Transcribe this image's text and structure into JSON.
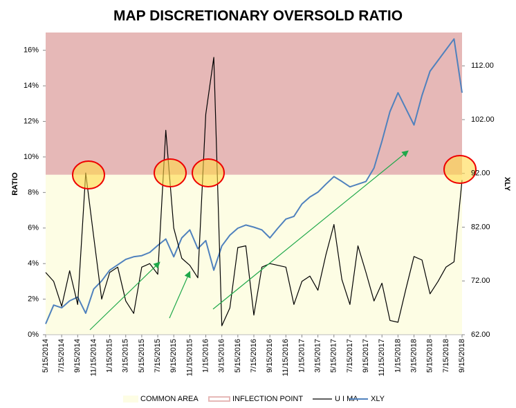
{
  "chart_data": {
    "type": "line",
    "title": "MAP DISCRETIONARY OVERSOLD RATIO",
    "y_label": "RATIO",
    "y2_label": "XLY",
    "categories": [
      "5/15/2014",
      null,
      "7/15/2014",
      null,
      "9/15/2014",
      null,
      "11/15/2014",
      null,
      "1/15/2015",
      null,
      "3/15/2015",
      null,
      "5/15/2015",
      null,
      "7/15/2015",
      null,
      "9/15/2015",
      null,
      "11/15/2015",
      null,
      "1/15/2016",
      null,
      "3/15/2016",
      null,
      "5/15/2016",
      null,
      "7/15/2016",
      null,
      "9/15/2016",
      null,
      "11/15/2016",
      null,
      "1/15/2017",
      null,
      "3/15/2017",
      null,
      "5/15/2017",
      null,
      "7/15/2017",
      null,
      "9/15/2017",
      null,
      "11/15/2017",
      null,
      "1/15/2018",
      null,
      "3/15/2018",
      null,
      "5/15/2018",
      null,
      "7/15/2018",
      null,
      "9/15/2018"
    ],
    "threshold": 9,
    "bands": [
      {
        "name": "COMMON AREA",
        "color": "#fdfde4"
      },
      {
        "name": "INFLECTION POINT",
        "color": "#e6b8b7"
      }
    ],
    "series": [
      {
        "name": "U I MA",
        "color": "#000000",
        "axis": "y",
        "values": [
          3.5,
          3.0,
          1.6,
          3.6,
          1.7,
          9.1,
          5.5,
          2.0,
          3.5,
          3.8,
          1.9,
          1.2,
          3.8,
          4.0,
          3.4,
          11.5,
          6.0,
          4.3,
          3.9,
          3.2,
          12.4,
          15.6,
          0.5,
          1.5,
          4.9,
          5.0,
          1.1,
          3.8,
          4.0,
          3.9,
          3.8,
          1.7,
          3.0,
          3.3,
          2.5,
          4.5,
          6.2,
          3.1,
          1.7,
          5.0,
          3.5,
          1.9,
          2.9,
          0.8,
          0.7,
          2.6,
          4.4,
          4.2,
          2.3,
          3.0,
          3.8,
          4.1,
          8.7
        ]
      },
      {
        "name": "XLY",
        "color": "#4f81bd",
        "axis": "y2",
        "values": [
          64,
          67.5,
          67,
          68.3,
          69,
          66,
          70.5,
          72,
          74,
          75,
          76,
          76.5,
          76.7,
          77.3,
          78.6,
          79.8,
          76.5,
          80,
          81.5,
          78,
          79.5,
          74,
          78.5,
          80.5,
          81.8,
          82.4,
          82,
          81.5,
          80,
          81.8,
          83.5,
          84,
          86.3,
          87.6,
          88.5,
          90,
          91.4,
          90.5,
          89.5,
          90,
          90.5,
          93,
          98,
          103.5,
          107,
          104,
          101,
          106.5,
          111,
          113,
          115,
          117,
          107
        ]
      }
    ],
    "ylim": [
      0,
      17
    ],
    "yticks": [
      {
        "value": 0,
        "label": "0%"
      },
      {
        "value": 2,
        "label": "2%"
      },
      {
        "value": 4,
        "label": "4%"
      },
      {
        "value": 6,
        "label": "6%"
      },
      {
        "value": 8,
        "label": "8%"
      },
      {
        "value": 10,
        "label": "10%"
      },
      {
        "value": 12,
        "label": "12%"
      },
      {
        "value": 14,
        "label": "14%"
      },
      {
        "value": 16,
        "label": "16%"
      }
    ],
    "y2lim": [
      62,
      118.2
    ],
    "y2ticks": [
      {
        "value": 62,
        "label": "62.00"
      },
      {
        "value": 72,
        "label": "72.00"
      },
      {
        "value": 82,
        "label": "82.00"
      },
      {
        "value": 92,
        "label": "92.00"
      },
      {
        "value": 102,
        "label": "102.00"
      },
      {
        "value": 112,
        "label": "112.00"
      }
    ],
    "legend": "bottom"
  }
}
